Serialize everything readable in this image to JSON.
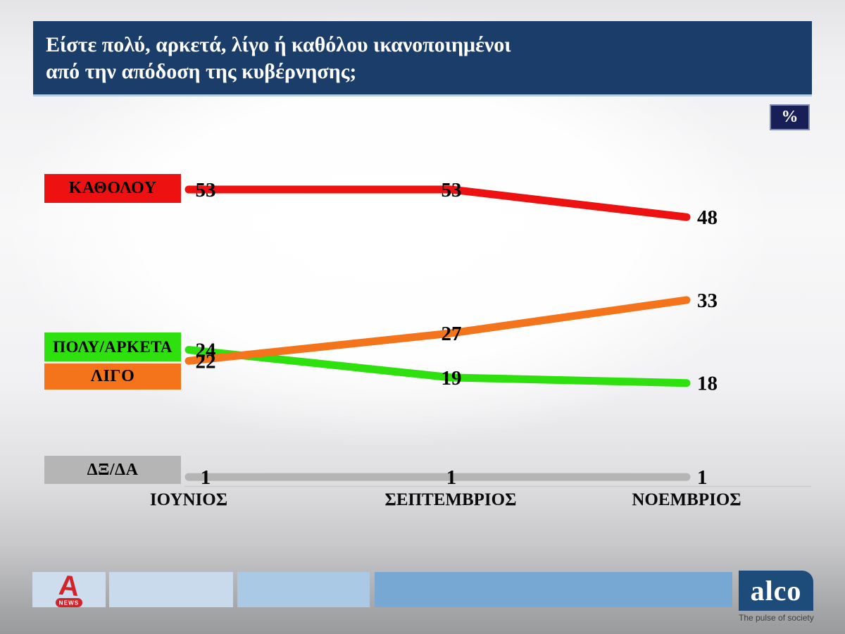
{
  "title": {
    "line1": "Είστε πολύ, αρκετά, λίγο ή καθόλου ικανοποιημένοι",
    "line2": "από την απόδοση της κυβέρνησης;"
  },
  "unit_badge": "%",
  "chart_data": {
    "type": "line",
    "categories": [
      "ΙΟΥΝΙΟΣ",
      "ΣΕΠΤΕΜΒΡΙΟΣ",
      "ΝΟΕΜΒΡΙΟΣ"
    ],
    "series": [
      {
        "name": "ΚΑΘΟΛΟΥ",
        "color": "#ed1111",
        "values": [
          53,
          53,
          48
        ]
      },
      {
        "name": "ΠΟΛΥ/ΑΡΚΕΤΑ",
        "color": "#2ee00e",
        "values": [
          24,
          19,
          18
        ]
      },
      {
        "name": "ΛΙΓΟ",
        "color": "#f4741c",
        "values": [
          22,
          27,
          33
        ]
      },
      {
        "name": "ΔΞ/ΔΑ",
        "color": "#b5b5b5",
        "values": [
          1,
          1,
          1
        ]
      }
    ],
    "title": "Είστε πολύ, αρκετά, λίγο ή καθόλου ικανοποιημένοι από την απόδοση της κυβέρνησης;",
    "xlabel": "",
    "ylabel": "%",
    "ylim": [
      0,
      60
    ],
    "grid": false,
    "legend_position": "left",
    "value_labels": true
  },
  "colors": {
    "header_navy": "#1b3d69",
    "badge_navy": "#171f56",
    "alco_navy": "#1d4c7a",
    "alpha_red": "#d2232a",
    "axis_line": "#cbcbcb"
  },
  "footer": {
    "strip_colors": [
      "#cdddee",
      "#c9daec",
      "#aac9e4",
      "#77a7d3"
    ],
    "alpha_news": {
      "letter": "A",
      "label": "NEWS"
    },
    "alco": {
      "name": "alco",
      "tagline": "The pulse of society"
    }
  }
}
